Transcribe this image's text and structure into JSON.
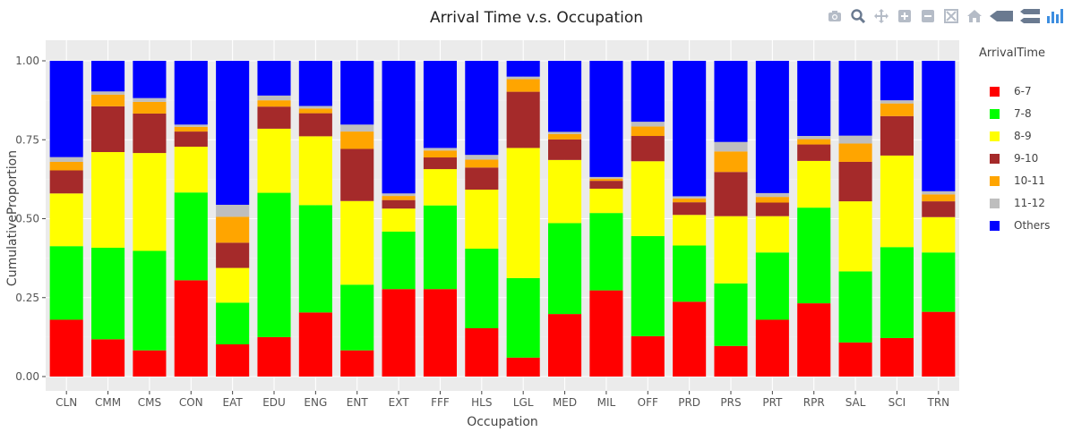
{
  "chart_data": {
    "type": "bar",
    "stacked": true,
    "title": "Arrival Time v.s. Occupation",
    "xlabel": "Occupation",
    "ylabel": "CumulativeProportion",
    "ylim": [
      0,
      1
    ],
    "yticks": [
      "0.00",
      "0.25",
      "0.50",
      "0.75",
      "1.00"
    ],
    "grid": true,
    "legend_title": "ArrivalTime",
    "legend_position": "right",
    "categories": [
      "CLN",
      "CMM",
      "CMS",
      "CON",
      "EAT",
      "EDU",
      "ENG",
      "ENT",
      "EXT",
      "FFF",
      "HLS",
      "LGL",
      "MED",
      "MIL",
      "OFF",
      "PRD",
      "PRS",
      "PRT",
      "RPR",
      "SAL",
      "SCI",
      "TRN"
    ],
    "series": [
      {
        "name": "6-7",
        "color": "#ff0000",
        "values": [
          0.18,
          0.118,
          0.083,
          0.305,
          0.102,
          0.125,
          0.203,
          0.083,
          0.277,
          0.277,
          0.153,
          0.06,
          0.198,
          0.273,
          0.128,
          0.237,
          0.097,
          0.18,
          0.232,
          0.108,
          0.122,
          0.205
        ]
      },
      {
        "name": "7-8",
        "color": "#00ff00",
        "values": [
          0.233,
          0.29,
          0.315,
          0.278,
          0.132,
          0.457,
          0.34,
          0.208,
          0.182,
          0.265,
          0.252,
          0.252,
          0.288,
          0.245,
          0.317,
          0.178,
          0.198,
          0.213,
          0.303,
          0.225,
          0.288,
          0.188
        ]
      },
      {
        "name": "8-9",
        "color": "#ffff00",
        "values": [
          0.167,
          0.303,
          0.31,
          0.145,
          0.11,
          0.203,
          0.218,
          0.265,
          0.073,
          0.115,
          0.187,
          0.412,
          0.2,
          0.077,
          0.237,
          0.097,
          0.213,
          0.115,
          0.148,
          0.222,
          0.29,
          0.112
        ]
      },
      {
        "name": "9-10",
        "color": "#a52a2a",
        "values": [
          0.073,
          0.145,
          0.125,
          0.048,
          0.08,
          0.07,
          0.073,
          0.165,
          0.027,
          0.037,
          0.07,
          0.178,
          0.065,
          0.025,
          0.08,
          0.04,
          0.14,
          0.043,
          0.052,
          0.125,
          0.125,
          0.05
        ]
      },
      {
        "name": "10-11",
        "color": "#ffa500",
        "values": [
          0.027,
          0.037,
          0.037,
          0.015,
          0.082,
          0.02,
          0.015,
          0.055,
          0.013,
          0.022,
          0.025,
          0.04,
          0.017,
          0.007,
          0.03,
          0.012,
          0.065,
          0.018,
          0.017,
          0.058,
          0.04,
          0.022
        ]
      },
      {
        "name": "11-12",
        "color": "#bebebe",
        "values": [
          0.015,
          0.01,
          0.012,
          0.007,
          0.038,
          0.015,
          0.008,
          0.022,
          0.008,
          0.008,
          0.015,
          0.008,
          0.007,
          0.005,
          0.015,
          0.007,
          0.03,
          0.012,
          0.01,
          0.025,
          0.01,
          0.01
        ]
      },
      {
        "name": "Others",
        "color": "#0000ff",
        "values": [
          0.305,
          0.097,
          0.118,
          0.202,
          0.456,
          0.11,
          0.143,
          0.202,
          0.42,
          0.276,
          0.298,
          0.05,
          0.225,
          0.368,
          0.193,
          0.429,
          0.257,
          0.419,
          0.238,
          0.237,
          0.125,
          0.413
        ]
      }
    ]
  },
  "modebar": {
    "icons": [
      "camera-icon",
      "zoom-icon",
      "pan-icon",
      "zoom-in-icon",
      "zoom-out-icon",
      "autoscale-icon",
      "home-icon",
      "spike-lines-icon",
      "compare-hover-icon",
      "plotly-logo-icon"
    ]
  }
}
